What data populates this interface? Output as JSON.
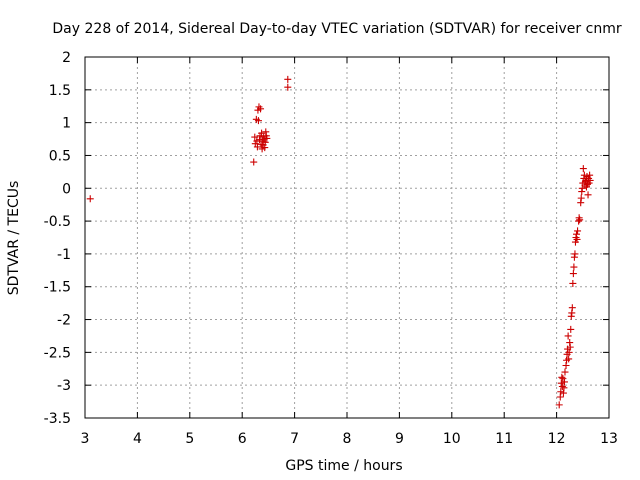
{
  "chart_data": {
    "type": "scatter",
    "title": "Day 228 of 2014, Sidereal Day-to-day VTEC variation (SDTVAR) for receiver cnmr",
    "xlabel": "GPS time / hours",
    "ylabel": "SDTVAR / TECUs",
    "xlim": [
      3,
      13
    ],
    "ylim": [
      -3.5,
      2
    ],
    "xticks": [
      "3",
      "4",
      "5",
      "6",
      "7",
      "8",
      "9",
      "10",
      "11",
      "12",
      "13"
    ],
    "yticks": [
      "2",
      "1.5",
      "1",
      "0.5",
      "0",
      "-0.5",
      "-1",
      "-1.5",
      "-2",
      "-2.5",
      "-3",
      "-3.5"
    ],
    "grid": true,
    "marker_color": "#cc0000",
    "series": [
      {
        "name": "SDTVAR",
        "marker": "+",
        "points": [
          [
            3.1,
            -0.16
          ],
          [
            6.22,
            0.4
          ],
          [
            6.24,
            0.78
          ],
          [
            6.25,
            0.68
          ],
          [
            6.27,
            1.05
          ],
          [
            6.28,
            0.72
          ],
          [
            6.29,
            0.63
          ],
          [
            6.3,
            1.19
          ],
          [
            6.31,
            1.03
          ],
          [
            6.32,
            1.24
          ],
          [
            6.33,
            0.74
          ],
          [
            6.34,
            0.8
          ],
          [
            6.35,
            1.21
          ],
          [
            6.36,
            0.67
          ],
          [
            6.37,
            0.84
          ],
          [
            6.38,
            0.6
          ],
          [
            6.39,
            0.72
          ],
          [
            6.4,
            0.66
          ],
          [
            6.41,
            0.78
          ],
          [
            6.42,
            0.75
          ],
          [
            6.43,
            0.62
          ],
          [
            6.44,
            0.7
          ],
          [
            6.45,
            0.86
          ],
          [
            6.46,
            0.8
          ],
          [
            6.47,
            0.76
          ],
          [
            6.87,
            1.66
          ],
          [
            6.87,
            1.54
          ],
          [
            12.05,
            -3.3
          ],
          [
            12.07,
            -3.18
          ],
          [
            12.08,
            -3.1
          ],
          [
            12.09,
            -2.97
          ],
          [
            12.1,
            -2.88
          ],
          [
            12.11,
            -3.02
          ],
          [
            12.12,
            -2.9
          ],
          [
            12.13,
            -3.12
          ],
          [
            12.14,
            -3.04
          ],
          [
            12.15,
            -2.95
          ],
          [
            12.16,
            -2.8
          ],
          [
            12.18,
            -2.7
          ],
          [
            12.19,
            -2.62
          ],
          [
            12.2,
            -2.53
          ],
          [
            12.21,
            -2.45
          ],
          [
            12.22,
            -2.25
          ],
          [
            12.23,
            -2.6
          ],
          [
            12.24,
            -2.5
          ],
          [
            12.25,
            -2.35
          ],
          [
            12.26,
            -2.42
          ],
          [
            12.27,
            -2.15
          ],
          [
            12.28,
            -1.95
          ],
          [
            12.29,
            -1.9
          ],
          [
            12.3,
            -1.82
          ],
          [
            12.31,
            -1.45
          ],
          [
            12.32,
            -1.3
          ],
          [
            12.33,
            -1.2
          ],
          [
            12.34,
            -1.05
          ],
          [
            12.35,
            -1.0
          ],
          [
            12.36,
            -0.82
          ],
          [
            12.37,
            -0.75
          ],
          [
            12.38,
            -0.7
          ],
          [
            12.39,
            -0.78
          ],
          [
            12.4,
            -0.65
          ],
          [
            12.42,
            -0.5
          ],
          [
            12.43,
            -0.45
          ],
          [
            12.44,
            -0.48
          ],
          [
            12.46,
            -0.22
          ],
          [
            12.47,
            -0.15
          ],
          [
            12.48,
            -0.05
          ],
          [
            12.49,
            0.0
          ],
          [
            12.5,
            0.08
          ],
          [
            12.51,
            0.3
          ],
          [
            12.52,
            0.15
          ],
          [
            12.53,
            0.2
          ],
          [
            12.54,
            0.05
          ],
          [
            12.55,
            0.1
          ],
          [
            12.56,
            0.12
          ],
          [
            12.57,
            0.02
          ],
          [
            12.58,
            0.18
          ],
          [
            12.59,
            0.06
          ],
          [
            12.6,
            -0.1
          ],
          [
            12.61,
            0.15
          ],
          [
            12.62,
            0.08
          ],
          [
            12.63,
            0.2
          ],
          [
            12.64,
            0.12
          ]
        ]
      }
    ]
  }
}
